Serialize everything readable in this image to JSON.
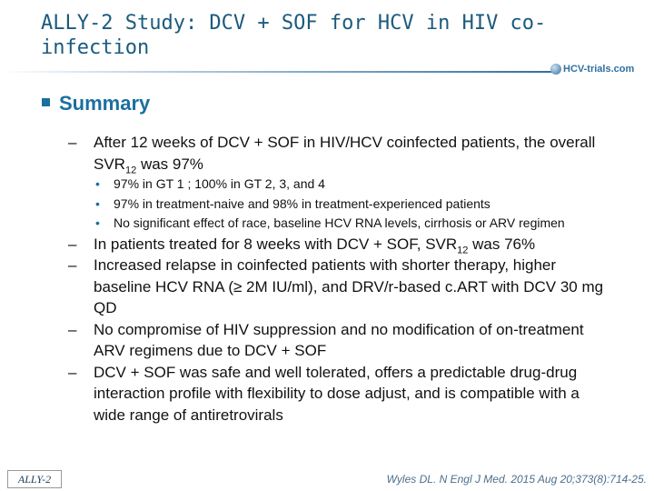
{
  "header": {
    "title": "ALLY-2 Study: DCV + SOF for HCV in HIV co-infection",
    "logo": "HCV-trials.com"
  },
  "section": {
    "heading": "Summary",
    "items": [
      {
        "text": "After 12 weeks of DCV + SOF in HIV/HCV coinfected patients, the overall SVR",
        "sub": "12",
        "tail": " was 97%",
        "subitems": [
          "97% in GT 1 ; 100% in GT 2, 3, and 4",
          "97% in treatment-naive and 98% in treatment-experienced patients",
          "No significant effect of race, baseline HCV RNA levels, cirrhosis or ARV regimen"
        ]
      },
      {
        "text": "In patients treated for 8 weeks with DCV + SOF, SVR",
        "sub": "12",
        "tail": " was 76%"
      },
      {
        "text": "Increased relapse in coinfected patients with shorter therapy, higher baseline HCV RNA (≥ 2M IU/ml), and DRV/r-based c.ART with DCV 30 mg QD"
      },
      {
        "text": "No compromise of HIV suppression and no modification of on-treatment ARV regimens due to DCV + SOF"
      },
      {
        "text": "DCV + SOF was safe and well tolerated, offers a predictable drug-drug interaction profile with flexibility to dose adjust, and is compatible with a wide range of antiretrovirals"
      }
    ]
  },
  "footer": {
    "label": "ALLY-2",
    "citation": "Wyles DL. N Engl J Med. 2015 Aug 20;373(8):714-25."
  }
}
